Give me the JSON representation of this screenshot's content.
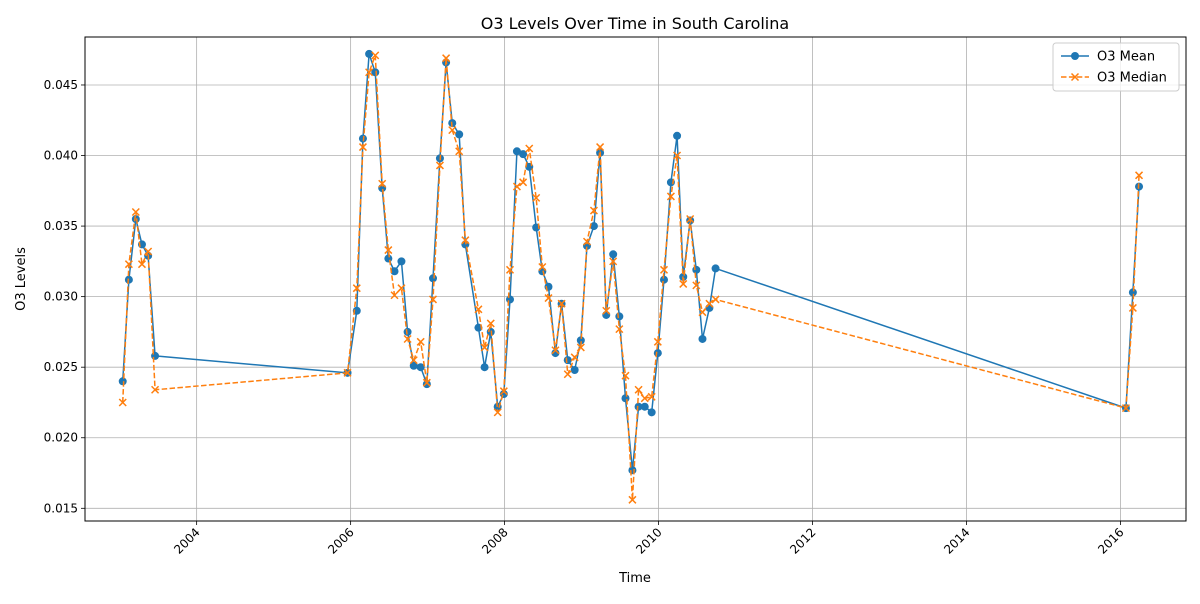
{
  "chart_data": {
    "type": "line",
    "title": "O3 Levels Over Time in South Carolina",
    "xlabel": "Time",
    "ylabel": "O3 Levels",
    "xlim": [
      2002.55,
      2016.85
    ],
    "ylim": [
      0.0141,
      0.0484
    ],
    "x_ticks": [
      2004,
      2006,
      2008,
      2010,
      2012,
      2014,
      2016
    ],
    "y_ticks": [
      0.015,
      0.02,
      0.025,
      0.03,
      0.035,
      0.04,
      0.045
    ],
    "y_tick_labels": [
      "0.015",
      "0.020",
      "0.025",
      "0.030",
      "0.035",
      "0.040",
      "0.045"
    ],
    "grid": true,
    "legend_position": "top-right",
    "x": [
      2003.04,
      2003.12,
      2003.21,
      2003.29,
      2003.37,
      2003.46,
      2005.96,
      2006.08,
      2006.16,
      2006.24,
      2006.32,
      2006.41,
      2006.49,
      2006.57,
      2006.66,
      2006.74,
      2006.82,
      2006.91,
      2006.99,
      2007.07,
      2007.16,
      2007.24,
      2007.32,
      2007.41,
      2007.49,
      2007.66,
      2007.74,
      2007.82,
      2007.91,
      2007.99,
      2008.07,
      2008.16,
      2008.24,
      2008.32,
      2008.41,
      2008.49,
      2008.57,
      2008.66,
      2008.74,
      2008.82,
      2008.91,
      2008.99,
      2009.07,
      2009.16,
      2009.24,
      2009.32,
      2009.41,
      2009.49,
      2009.57,
      2009.66,
      2009.74,
      2009.82,
      2009.91,
      2009.99,
      2010.07,
      2010.16,
      2010.24,
      2010.32,
      2010.41,
      2010.49,
      2010.57,
      2010.66,
      2010.74,
      2016.07,
      2016.16,
      2016.24
    ],
    "series": [
      {
        "name": "O3 Mean",
        "color": "#1f77b4",
        "marker": "circle",
        "line_style": "solid",
        "values": [
          0.024,
          0.0312,
          0.0355,
          0.0337,
          0.0329,
          0.0258,
          0.0246,
          0.029,
          0.0412,
          0.0472,
          0.0459,
          0.0377,
          0.0327,
          0.0318,
          0.0325,
          0.0275,
          0.0251,
          0.025,
          0.0238,
          0.0313,
          0.0398,
          0.0466,
          0.0423,
          0.0415,
          0.0337,
          0.0278,
          0.025,
          0.0275,
          0.0222,
          0.0231,
          0.0298,
          0.0403,
          0.0401,
          0.0392,
          0.0349,
          0.0318,
          0.0307,
          0.026,
          0.0295,
          0.0255,
          0.0248,
          0.0269,
          0.0336,
          0.035,
          0.0402,
          0.0287,
          0.033,
          0.0286,
          0.0228,
          0.0177,
          0.0222,
          0.0222,
          0.0218,
          0.026,
          0.0312,
          0.0381,
          0.0414,
          0.0314,
          0.0354,
          0.0319,
          0.027,
          0.0292,
          0.032,
          0.0221,
          0.0303,
          0.0378
        ]
      },
      {
        "name": "O3 Median",
        "color": "#ff7f0e",
        "marker": "x",
        "line_style": "dashed",
        "values": [
          0.0225,
          0.0323,
          0.036,
          0.0323,
          0.0332,
          0.0234,
          0.0246,
          0.0306,
          0.0406,
          0.0459,
          0.0471,
          0.038,
          0.0333,
          0.0301,
          0.0306,
          0.027,
          0.0255,
          0.0268,
          0.0239,
          0.0298,
          0.0393,
          0.0469,
          0.0418,
          0.0403,
          0.034,
          0.0291,
          0.0264,
          0.0281,
          0.0218,
          0.0233,
          0.0319,
          0.0378,
          0.0381,
          0.0405,
          0.037,
          0.0321,
          0.0299,
          0.0262,
          0.0295,
          0.0245,
          0.0257,
          0.0264,
          0.0339,
          0.0361,
          0.0406,
          0.029,
          0.0325,
          0.0277,
          0.0244,
          0.0156,
          0.0234,
          0.0228,
          0.0229,
          0.0268,
          0.0319,
          0.0371,
          0.04,
          0.0309,
          0.0355,
          0.0308,
          0.0289,
          0.0295,
          0.0298,
          0.0221,
          0.0292,
          0.0386
        ]
      }
    ]
  }
}
